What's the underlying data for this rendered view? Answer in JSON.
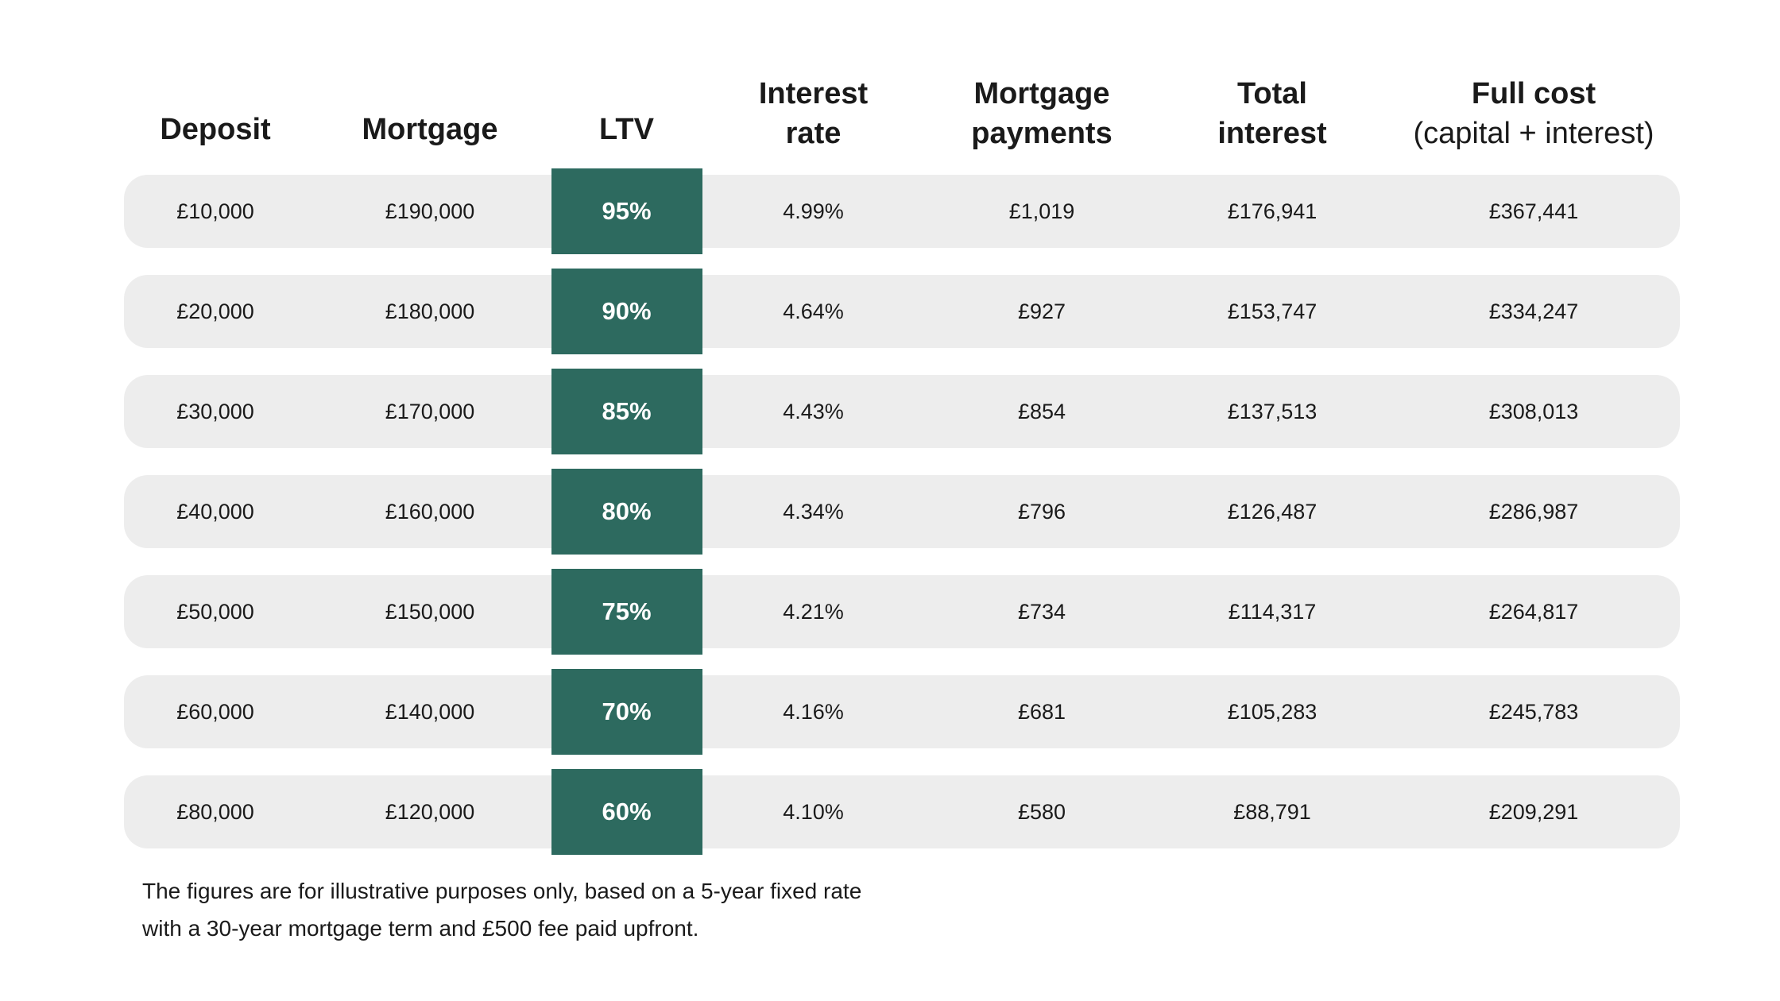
{
  "colors": {
    "background": "#FFFFFF",
    "row_bg": "#EDEDED",
    "badge_bg": "#2D6A5F",
    "badge_text": "#FFFFFF",
    "text": "#1A1A1A"
  },
  "header_lines": [
    {
      "l1": "Deposit",
      "l2": ""
    },
    {
      "l1": "Mortgage",
      "l2": ""
    },
    {
      "l1": "LTV",
      "l2": ""
    },
    {
      "l1": "Interest",
      "l2": "rate"
    },
    {
      "l1": "Mortgage",
      "l2": "payments"
    },
    {
      "l1": "Total",
      "l2": "interest"
    },
    {
      "l1": "Full cost",
      "l2": "(capital + interest)"
    }
  ],
  "footnote": {
    "line1": "The figures are for illustrative purposes only, based on a 5-year fixed rate",
    "line2": "with a 30-year mortgage term and £500 fee paid upfront."
  },
  "chart_data": {
    "type": "table",
    "columns": [
      "Deposit",
      "Mortgage",
      "LTV",
      "Interest rate",
      "Mortgage payments",
      "Total interest",
      "Full cost (capital + interest)"
    ],
    "rows": [
      [
        "£10,000",
        "£190,000",
        "95%",
        "4.99%",
        "£1,019",
        "£176,941",
        "£367,441"
      ],
      [
        "£20,000",
        "£180,000",
        "90%",
        "4.64%",
        "£927",
        "£153,747",
        "£334,247"
      ],
      [
        "£30,000",
        "£170,000",
        "85%",
        "4.43%",
        "£854",
        "£137,513",
        "£308,013"
      ],
      [
        "£40,000",
        "£160,000",
        "80%",
        "4.34%",
        "£796",
        "£126,487",
        "£286,987"
      ],
      [
        "£50,000",
        "£150,000",
        "75%",
        "4.21%",
        "£734",
        "£114,317",
        "£264,817"
      ],
      [
        "£60,000",
        "£140,000",
        "70%",
        "4.16%",
        "£681",
        "£105,283",
        "£245,783"
      ],
      [
        "£80,000",
        "£120,000",
        "60%",
        "4.10%",
        "£580",
        "£88,791",
        "£209,291"
      ]
    ],
    "footnote": "The figures are for illustrative purposes only, based on a 5-year fixed rate with a 30-year mortgage term and £500 fee paid upfront."
  }
}
